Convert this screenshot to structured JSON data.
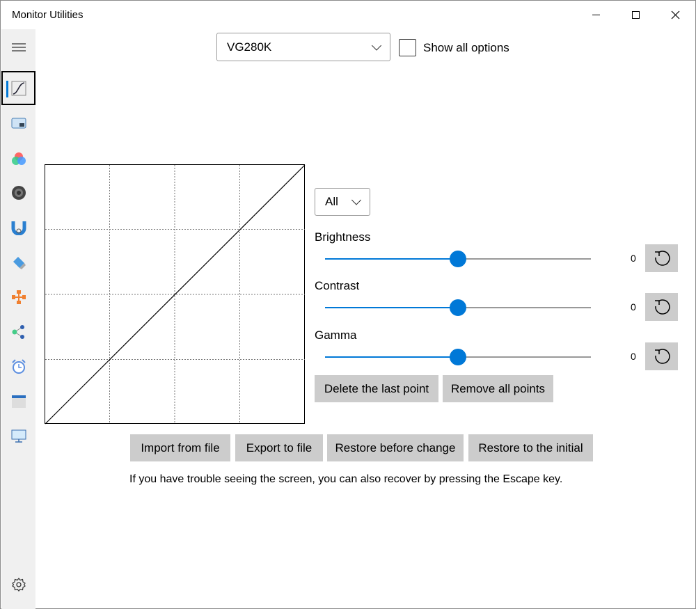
{
  "window": {
    "title": "Monitor Utilities"
  },
  "sidebar": {
    "items": [
      {
        "icon": "hamburger-menu-icon"
      },
      {
        "icon": "tone-curve-icon",
        "selected": true
      },
      {
        "icon": "picture-in-picture-icon"
      },
      {
        "icon": "color-icon"
      },
      {
        "icon": "speaker-icon"
      },
      {
        "icon": "magnet-icon"
      },
      {
        "icon": "eraser-icon"
      },
      {
        "icon": "network-icon"
      },
      {
        "icon": "share-icon"
      },
      {
        "icon": "alarm-clock-icon"
      },
      {
        "icon": "window-icon"
      },
      {
        "icon": "monitor-icon"
      },
      {
        "icon": "gear-icon"
      }
    ]
  },
  "header": {
    "monitor_select": "VG280K",
    "show_all_label": "Show all options",
    "show_all_checked": false
  },
  "curve": {
    "channel_select": "All"
  },
  "sliders": [
    {
      "label": "Brightness",
      "value": "0",
      "fraction": 0.5
    },
    {
      "label": "Contrast",
      "value": "0",
      "fraction": 0.5
    },
    {
      "label": "Gamma",
      "value": "0",
      "fraction": 0.5
    }
  ],
  "point_buttons": {
    "delete_last": "Delete the last point",
    "remove_all": "Remove all points"
  },
  "file_buttons": {
    "import": "Import from file",
    "export": "Export to file",
    "restore_before": "Restore before change",
    "restore_initial": "Restore to the initial"
  },
  "hint": "If you have trouble seeing the screen, you can also recover by pressing the Escape key.",
  "colors": {
    "accent": "#0078d7",
    "button": "#cccccc",
    "sidebar": "#f0f0f0"
  }
}
